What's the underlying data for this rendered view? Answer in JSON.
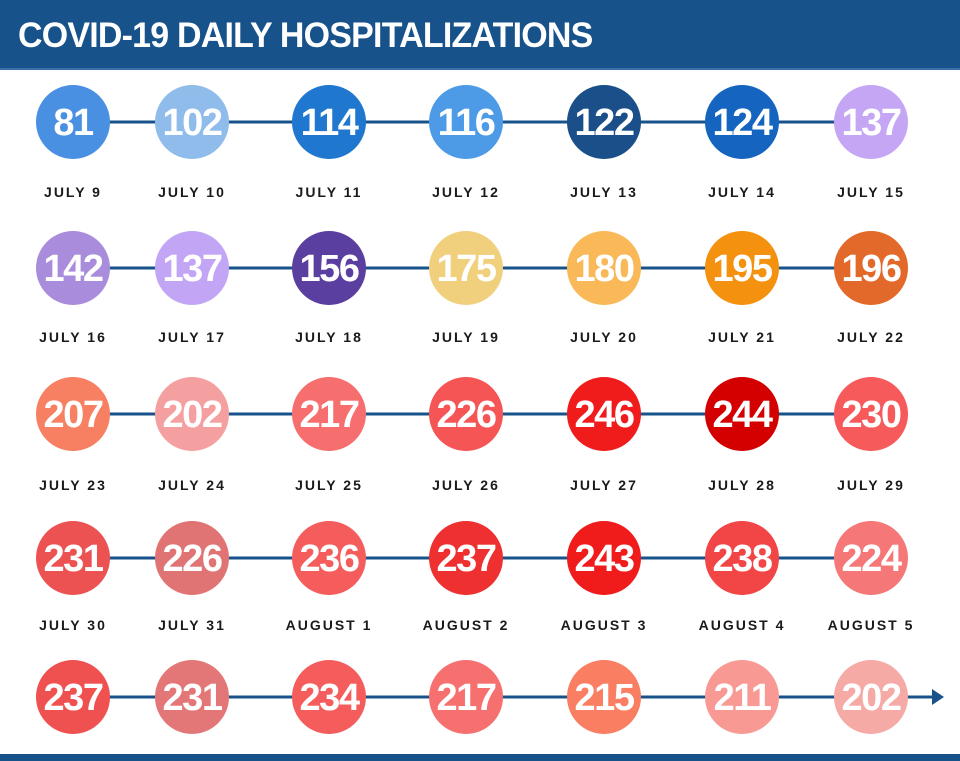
{
  "header": {
    "title": "COVID-19 DAILY HOSPITALIZATIONS"
  },
  "colors": {
    "header_bg": "#17528a",
    "connector": "#17528a"
  },
  "chart_data": {
    "type": "timeline",
    "title": "COVID-19 DAILY HOSPITALIZATIONS",
    "xlabel": "",
    "ylabel": "Daily hospitalizations",
    "categories": [
      "JULY 9",
      "JULY 10",
      "JULY 11",
      "JULY 12",
      "JULY 13",
      "JULY 14",
      "JULY 15",
      "JULY 16",
      "JULY 17",
      "JULY 18",
      "JULY 19",
      "JULY 20",
      "JULY 21",
      "JULY 22",
      "JULY 23",
      "JULY 24",
      "JULY 25",
      "JULY 26",
      "JULY 27",
      "JULY 28",
      "JULY 29",
      "JULY 30",
      "JULY 31",
      "AUGUST 1",
      "AUGUST 2",
      "AUGUST 3",
      "AUGUST 4",
      "AUGUST 5"
    ],
    "values": [
      81,
      102,
      114,
      116,
      122,
      124,
      137,
      142,
      137,
      156,
      175,
      180,
      195,
      196,
      207,
      202,
      217,
      226,
      246,
      244,
      230,
      231,
      226,
      236,
      237,
      243,
      238,
      224,
      237,
      231,
      234,
      217,
      215,
      211,
      202
    ],
    "circle_colors": [
      "#4a90e2",
      "#8fbcea",
      "#1f77d0",
      "#4d9be6",
      "#1a4f8a",
      "#1565c0",
      "#c4a6f5",
      "#a98ddc",
      "#c3a5f5",
      "#5b3fa0",
      "#f0d07c",
      "#f9b959",
      "#f4910f",
      "#e2692a",
      "#f77f62",
      "#f5a0a0",
      "#f76e6e",
      "#f55555",
      "#f01c1c",
      "#d40000",
      "#f65a5a",
      "#ec5252",
      "#e07474",
      "#f55d5d",
      "#ee3030",
      "#f01b1b",
      "#f24545",
      "#f57777",
      "#ef5050",
      "#e37777",
      "#f55d5d",
      "#f77070",
      "#f97e62",
      "#f89a93",
      "#f5aaa6"
    ],
    "rows": 5,
    "columns": 7,
    "note": "35 circles in 5 rows of 7; date labels appear under rows 1-4 only (28 labels). Rows are connected by a horizontal line; the last row ends with an arrow."
  }
}
